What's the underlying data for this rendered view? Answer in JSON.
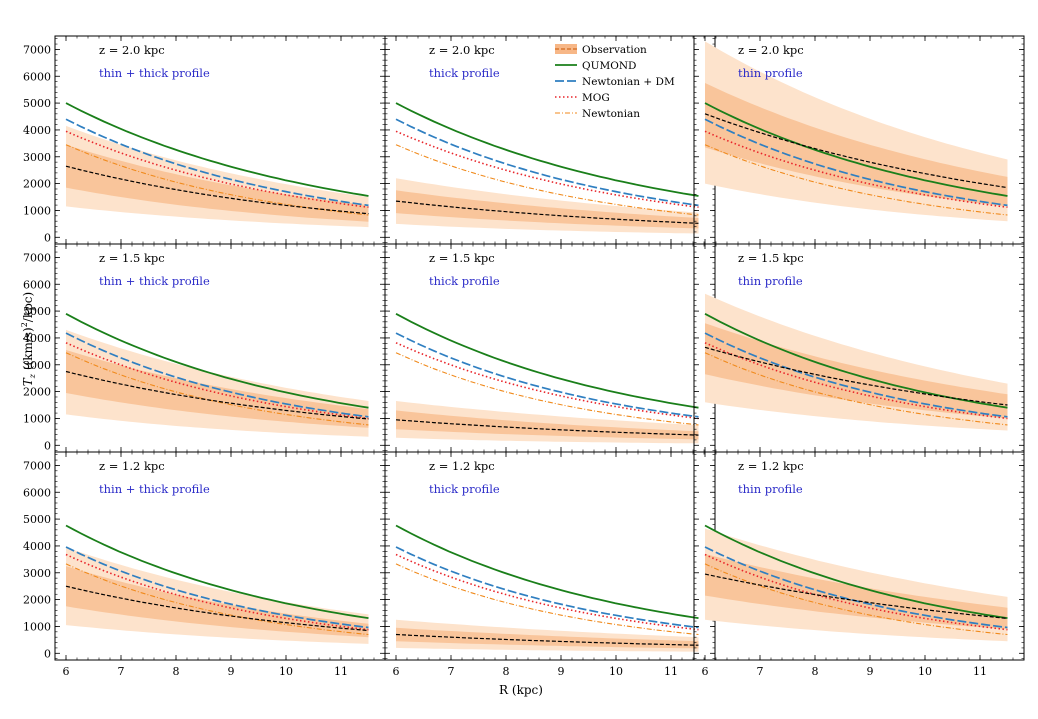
{
  "chart_data": {
    "type": "line",
    "xlabel": "R (kpc)",
    "ylabel_parts": [
      "T",
      "z",
      " ((km/s)",
      "2",
      "/kpc)"
    ],
    "xlim": [
      5.8,
      11.8
    ],
    "ylim": [
      -250,
      7500
    ],
    "xticks": [
      6,
      7,
      8,
      9,
      10,
      11
    ],
    "yticks": [
      0,
      1000,
      2000,
      3000,
      4000,
      5000,
      6000,
      7000
    ],
    "colors": {
      "observation": "#000000",
      "band_inner": "#f9c59b",
      "band_outer": "#fde3cc",
      "legend_obs_patch": "#f7b787",
      "legend_obs_line": "#d2691e",
      "qumond": "#1a7f1a",
      "newtonian_dm": "#2f7fc1",
      "mog": "#e8242a",
      "newtonian": "#f08a1c",
      "profile_text": "#2a2ac8"
    },
    "legend": {
      "location": "upper-center of top-middle panel",
      "entries": [
        {
          "key": "observation",
          "label": "Observation"
        },
        {
          "key": "qumond",
          "label": "QUMOND"
        },
        {
          "key": "newtonian_dm",
          "label": "Newtonian + DM"
        },
        {
          "key": "mog",
          "label": "MOG"
        },
        {
          "key": "newtonian",
          "label": "Newtonian"
        }
      ]
    },
    "rows": [
      {
        "z_label": "z = 2.0 kpc",
        "z_value": 2.0,
        "qumond": [
          5000,
          1540
        ],
        "newtonian_dm": [
          4400,
          1190
        ],
        "mog": [
          3950,
          1120
        ],
        "newtonian": [
          3450,
          830
        ]
      },
      {
        "z_label": "z = 1.5 kpc",
        "z_value": 1.5,
        "qumond": [
          4900,
          1400
        ],
        "newtonian_dm": [
          4180,
          1060
        ],
        "mog": [
          3820,
          1000
        ],
        "newtonian": [
          3450,
          760
        ]
      },
      {
        "z_label": "z = 1.2 kpc",
        "z_value": 1.2,
        "qumond": [
          4760,
          1310
        ],
        "newtonian_dm": [
          3960,
          960
        ],
        "mog": [
          3680,
          880
        ],
        "newtonian": [
          3330,
          700
        ]
      }
    ],
    "columns": [
      {
        "profile": "thin + thick profile"
      },
      {
        "profile": "thick profile"
      },
      {
        "profile": "thin profile"
      }
    ],
    "observation": [
      [
        {
          "line": [
            2650,
            880
          ],
          "inner_lo": [
            1850,
            580
          ],
          "inner_hi": [
            3450,
            1200
          ],
          "outer_lo": [
            1150,
            380
          ],
          "outer_hi": [
            4150,
            1500
          ]
        },
        {
          "line": [
            1350,
            520
          ],
          "inner_lo": [
            900,
            330
          ],
          "inner_hi": [
            1750,
            720
          ],
          "outer_lo": [
            500,
            140
          ],
          "outer_hi": [
            2200,
            920
          ]
        },
        {
          "line": [
            4600,
            1850
          ],
          "inner_lo": [
            3350,
            1150
          ],
          "inner_hi": [
            5750,
            2250
          ],
          "outer_lo": [
            2000,
            600
          ],
          "outer_hi": [
            7300,
            2900
          ]
        }
      ],
      [
        {
          "line": [
            2750,
            980
          ],
          "inner_lo": [
            1950,
            650
          ],
          "inner_hi": [
            3550,
            1350
          ],
          "outer_lo": [
            1150,
            320
          ],
          "outer_hi": [
            4300,
            1650
          ]
        },
        {
          "line": [
            950,
            380
          ],
          "inner_lo": [
            600,
            220
          ],
          "inner_hi": [
            1300,
            520
          ],
          "outer_lo": [
            280,
            70
          ],
          "outer_hi": [
            1650,
            750
          ]
        },
        {
          "line": [
            3650,
            1500
          ],
          "inner_lo": [
            2650,
            1000
          ],
          "inner_hi": [
            4550,
            1900
          ],
          "outer_lo": [
            1600,
            550
          ],
          "outer_hi": [
            5650,
            2300
          ]
        }
      ],
      [
        {
          "line": [
            2500,
            850
          ],
          "inner_lo": [
            1750,
            600
          ],
          "inner_hi": [
            3250,
            1100
          ],
          "outer_lo": [
            1050,
            350
          ],
          "outer_hi": [
            3950,
            1450
          ]
        },
        {
          "line": [
            700,
            300
          ],
          "inner_lo": [
            450,
            180
          ],
          "inner_hi": [
            950,
            450
          ],
          "outer_lo": [
            200,
            60
          ],
          "outer_hi": [
            1250,
            600
          ]
        },
        {
          "line": [
            2950,
            1300
          ],
          "inner_lo": [
            2150,
            900
          ],
          "inner_hi": [
            3700,
            1700
          ],
          "outer_lo": [
            1250,
            450
          ],
          "outer_hi": [
            4650,
            2100
          ]
        }
      ]
    ]
  }
}
